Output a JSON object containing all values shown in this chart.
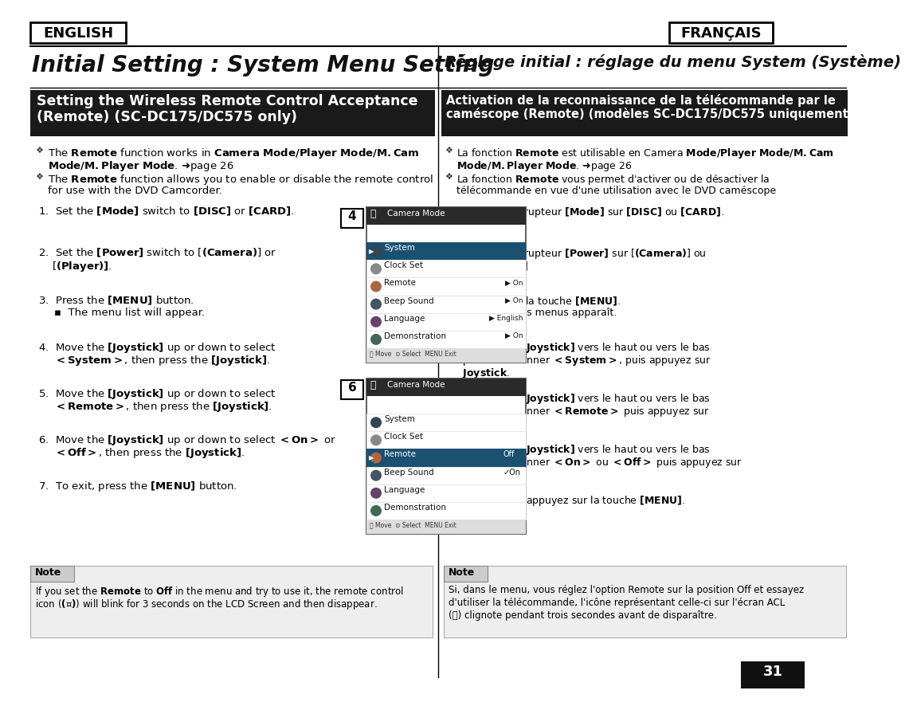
{
  "bg_color": "#ffffff",
  "page_number": "31",
  "english_label": "ENGLISH",
  "francais_label": "FRANÇAIS",
  "title_left": "Initial Setting : System Menu Setting",
  "title_right": "Réglage initial : réglage du menu System (Système)",
  "section_left_line1": "Setting the Wireless Remote Control Acceptance",
  "section_left_line2": "(Remote) (SC-DC175/DC575 only)",
  "section_right_line1": "Activation de la reconnaissance de la télécommande par le",
  "section_right_line2": "caméscope (Remote) (modèles SC-DC175/DC575 uniquement)",
  "menu_items": [
    "Camera Mode",
    "System",
    "Clock Set",
    "Remote",
    "Beep Sound",
    "Language",
    "Demonstration"
  ],
  "menu4_highlight": "System",
  "menu6_highlight": "Remote",
  "menu4_values": {
    "Remote": "On",
    "Beep Sound": "On",
    "Language": "English",
    "Demonstration": "On"
  },
  "menu6_off_on": {
    "Remote": "Off",
    "Beep Sound": "On"
  }
}
